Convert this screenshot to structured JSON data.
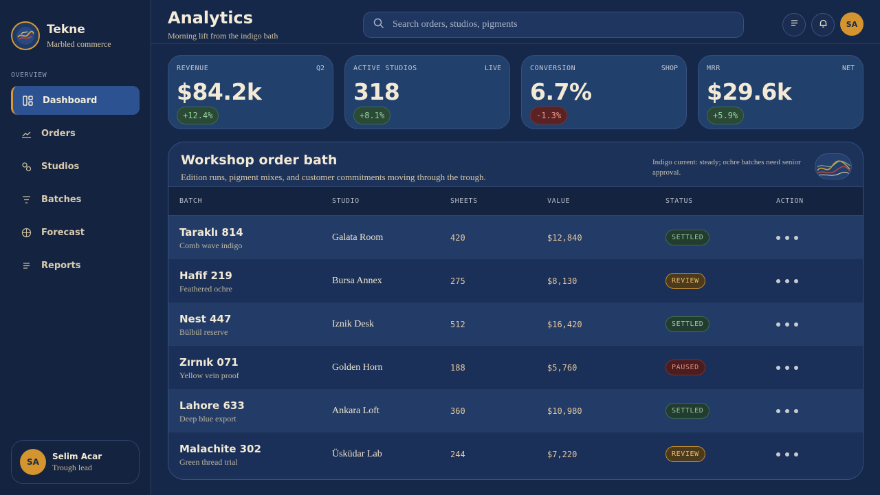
{
  "brand": {
    "name": "Tekne",
    "subtitle": "Marbled commerce"
  },
  "nav": {
    "heading": "OVERVIEW",
    "items": [
      {
        "label": "Dashboard",
        "icon": "dashboard-icon",
        "active": true
      },
      {
        "label": "Orders",
        "icon": "chart-line-icon"
      },
      {
        "label": "Studios",
        "icon": "studios-icon"
      },
      {
        "label": "Batches",
        "icon": "filter-list-icon"
      },
      {
        "label": "Forecast",
        "icon": "globe-icon"
      },
      {
        "label": "Reports",
        "icon": "list-icon"
      }
    ]
  },
  "user": {
    "initials": "SA",
    "name": "Selim Acar",
    "role": "Trough lead"
  },
  "header": {
    "title": "Analytics",
    "subtitle": "Morning lift from the indigo bath",
    "search_placeholder": "Search orders, studios, pigments",
    "avatar_initials": "SA"
  },
  "kpis": [
    {
      "label": "REVENUE",
      "tag": "Q2",
      "value": "$84.2k",
      "delta": "+12.4%",
      "trend": "up"
    },
    {
      "label": "ACTIVE STUDIOS",
      "tag": "LIVE",
      "value": "318",
      "delta": "+8.1%",
      "trend": "up"
    },
    {
      "label": "CONVERSION",
      "tag": "SHOP",
      "value": "6.7%",
      "delta": "-1.3%",
      "trend": "down"
    },
    {
      "label": "MRR",
      "tag": "NET",
      "value": "$29.6k",
      "delta": "+5.9%",
      "trend": "up"
    }
  ],
  "panel": {
    "title": "Workshop order bath",
    "subtitle": "Edition runs, pigment mixes, and customer commitments moving through the trough.",
    "note": "Indigo current: steady; ochre batches need senior approval."
  },
  "table": {
    "columns": [
      "BATCH",
      "STUDIO",
      "SHEETS",
      "VALUE",
      "STATUS",
      "ACTION"
    ],
    "rows": [
      {
        "batch": "Taraklı 814",
        "desc": "Comb wave indigo",
        "studio": "Galata Room",
        "sheets": "420",
        "value": "$12,840",
        "status": "SETTLED"
      },
      {
        "batch": "Hafif 219",
        "desc": "Feathered ochre",
        "studio": "Bursa Annex",
        "sheets": "275",
        "value": "$8,130",
        "status": "REVIEW"
      },
      {
        "batch": "Nest 447",
        "desc": "Bülbül reserve",
        "studio": "Iznik Desk",
        "sheets": "512",
        "value": "$16,420",
        "status": "SETTLED"
      },
      {
        "batch": "Zırnık 071",
        "desc": "Yellow vein proof",
        "studio": "Golden Horn",
        "sheets": "188",
        "value": "$5,760",
        "status": "PAUSED"
      },
      {
        "batch": "Lahore 633",
        "desc": "Deep blue export",
        "studio": "Ankara Loft",
        "sheets": "360",
        "value": "$10,980",
        "status": "SETTLED"
      },
      {
        "batch": "Malachite 302",
        "desc": "Green thread trial",
        "studio": "Üsküdar Lab",
        "sheets": "244",
        "value": "$7,220",
        "status": "REVIEW"
      }
    ]
  },
  "colors": {
    "accent": "#d99a35",
    "active_nav": "#2c5291",
    "background": "#16284a"
  }
}
